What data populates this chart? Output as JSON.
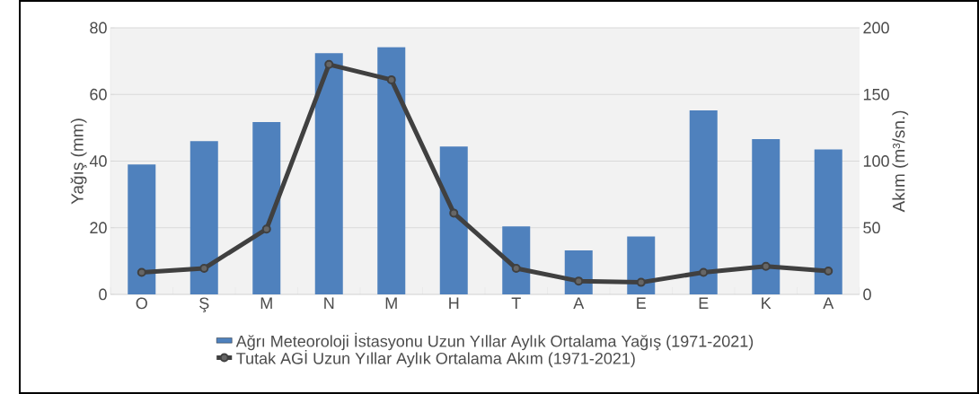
{
  "chart_data": {
    "type": "bar",
    "categories": [
      "O",
      "Ş",
      "M",
      "N",
      "M",
      "H",
      "T",
      "A",
      "E",
      "E",
      "K",
      "A"
    ],
    "ylabel": "Yağış (mm)",
    "y2label": "Akım (m³/sn.)",
    "ylim": [
      0,
      80
    ],
    "yticks": [
      0,
      20,
      40,
      60,
      80
    ],
    "y2lim": [
      0,
      200
    ],
    "y2ticks": [
      0,
      50,
      100,
      150,
      200
    ],
    "grid": "y",
    "legend": "bottom",
    "series": [
      {
        "name": "Ağrı  Meteoroloji İstasyonu Uzun Yıllar Aylık Ortalama Yağış (1971-2021)",
        "color": "#4f81bd",
        "values": [
          39,
          46,
          51.7,
          72.4,
          74.2,
          44.4,
          20.4,
          13.2,
          17.4,
          55.2,
          46.6,
          43.5
        ]
      },
      {
        "name": "Tutak AGİ Uzun Yıllar Aylık Ortalama Akım (1971-2021)",
        "type": "line",
        "axis": "y2",
        "marker": "circle",
        "color": "#404040",
        "values": [
          16.5,
          19.5,
          49,
          172.5,
          161,
          61,
          19.5,
          10,
          9,
          16.5,
          21,
          17.5
        ]
      }
    ]
  }
}
